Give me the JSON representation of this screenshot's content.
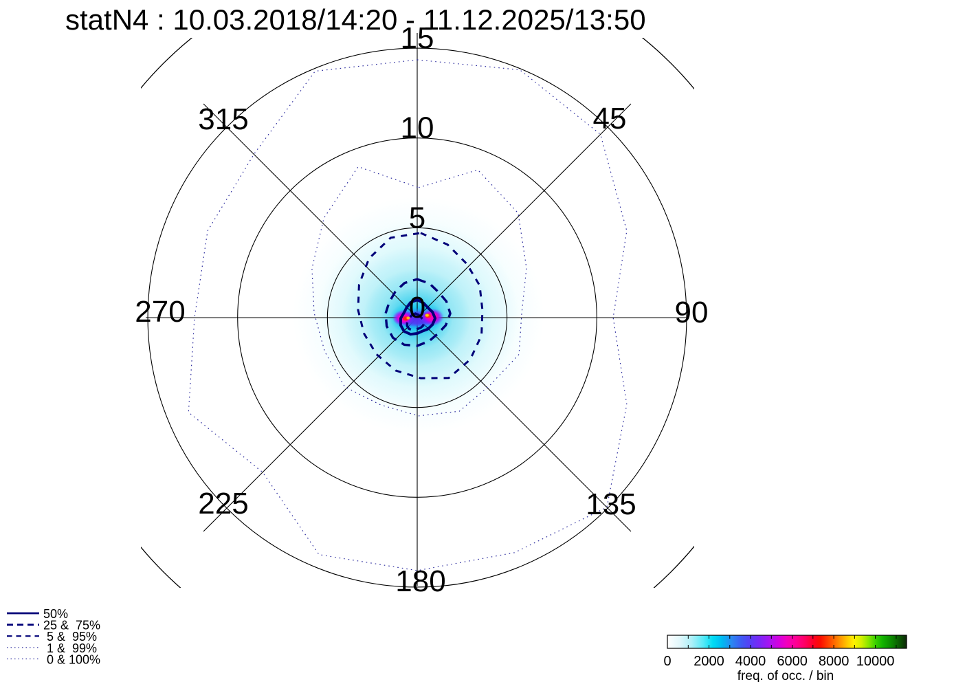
{
  "chart_data": {
    "type": "heatmap",
    "subtype": "polar_2d_histogram_with_percentile_contours",
    "title": "statN4 : 10.03.2018/14:20 - 11.12.2025/13:50",
    "station": "statN4",
    "period_start": "10.03.2018/14:20",
    "period_end": "11.12.2025/13:50",
    "angular_tick_labels_deg": [
      "45",
      "90",
      "135",
      "180",
      "225",
      "270",
      "315"
    ],
    "radial_tick_labels": [
      "0",
      "5",
      "10",
      "15"
    ],
    "radial_axis_max_units": 15,
    "grid_circle_radii_units": [
      5,
      10,
      15
    ],
    "outer_boundary_radius_units": 20,
    "legend_items": [
      {
        "label": "50%",
        "style": "solid"
      },
      {
        "label": "25 &  75%",
        "style": "dash-long"
      },
      {
        "label": " 5 &  95%",
        "style": "dash-short"
      },
      {
        "label": " 1 &  99%",
        "style": "dotted"
      },
      {
        "label": " 0 & 100%",
        "style": "dotted"
      }
    ],
    "percentile_contours": [
      {
        "percentile": "100",
        "style": "dotted",
        "center_offset_units": [
          0,
          0
        ],
        "radii_units": [
          14.35,
          14.93,
          14.43,
          12.63,
          10.91,
          12.63,
          14.93,
          14.16,
          14.08,
          14.28,
          12.17,
          13.78,
          12.4,
          12.63,
          12.86,
          14.85
        ]
      },
      {
        "percentile": "99",
        "style": "dotted",
        "center_offset_units": [
          0.08,
          -0.27
        ],
        "radii_units": [
          6.97,
          8.61,
          7.84,
          6.5,
          5.74,
          6.05,
          5.66,
          5.93,
          5.74,
          5.55,
          5.82,
          5.66,
          5.82,
          6.43,
          7.46,
          8.8
        ]
      },
      {
        "percentile": "95",
        "style": "dash-short",
        "center_offset_units": [
          0.19,
          -0.42
        ],
        "radii_units": [
          4.29,
          3.94,
          3.64,
          3.56,
          3.44,
          3.67,
          3.9,
          4.09,
          3.79,
          3.64,
          3.48,
          3.41,
          3.48,
          3.71,
          4.06,
          4.36
        ]
      },
      {
        "percentile": "75",
        "style": "dash-long",
        "center_offset_units": [
          0,
          -0.23
        ],
        "radii_units": [
          1.91,
          1.8,
          1.68,
          1.76,
          1.84,
          1.72,
          1.61,
          1.68,
          1.8,
          1.88,
          1.91,
          1.84,
          1.76,
          1.68,
          1.72,
          1.84
        ]
      },
      {
        "percentile": "25",
        "style": "dash-long",
        "center_offset_units": [
          -0.1,
          0.27
        ],
        "radii_units": [
          0.5,
          0.46,
          0.42,
          0.46,
          0.5,
          0.46,
          0.42,
          0.38,
          0.42,
          0.46,
          0.5,
          0.5,
          0.46,
          0.42,
          0.42,
          0.46
        ]
      },
      {
        "percentile": "50",
        "style": "solid",
        "center_offset_units": [
          0,
          0.04
        ],
        "radii_units": [
          1.03,
          0.92,
          0.84,
          0.92,
          1.0,
          0.92,
          0.84,
          0.77,
          0.84,
          0.96,
          1.03,
          1.0,
          0.92,
          0.8,
          0.84,
          0.96
        ]
      }
    ],
    "density_layers": [
      {
        "layer": "halo",
        "dx": 0.08,
        "dy": -0.12,
        "rx": 7.0,
        "ry": 6.6,
        "color": "#eafcfe",
        "alpha": 1
      },
      {
        "layer": "halo",
        "dx": 0.08,
        "dy": -0.12,
        "rx": 5.6,
        "ry": 5.2,
        "color": "#d2f6fb",
        "alpha": 1
      },
      {
        "layer": "halo",
        "dx": 0.02,
        "dy": -0.06,
        "rx": 4.2,
        "ry": 3.9,
        "color": "#b0eef7",
        "alpha": 1
      },
      {
        "layer": "halo",
        "dx": -0.02,
        "dy": 0.0,
        "rx": 3.0,
        "ry": 2.7,
        "color": "#86e3f3",
        "alpha": 1
      },
      {
        "layer": "halo",
        "dx": -0.02,
        "dy": 0.02,
        "rx": 2.0,
        "ry": 1.7,
        "color": "#46d3ef",
        "alpha": 1
      },
      {
        "layer": "halo",
        "dx": 0.0,
        "dy": 0.02,
        "rx": 1.55,
        "ry": 0.95,
        "color": "#0fc3ee",
        "alpha": 1
      },
      {
        "layer": "core",
        "dx": 0.0,
        "dy": 0.05,
        "rx": 1.35,
        "ry": 0.6,
        "color": "#2f7bff",
        "alpha": 0.95
      },
      {
        "layer": "core",
        "dx": 0.02,
        "dy": 0.06,
        "rx": 1.1,
        "ry": 0.45,
        "color": "#5a2af2",
        "alpha": 0.95
      },
      {
        "layer": "core",
        "dx": -0.8,
        "dy": 0.02,
        "rx": 0.58,
        "ry": 0.44,
        "color": "#b400ff",
        "alpha": 1
      },
      {
        "layer": "core",
        "dx": 0.85,
        "dy": -0.03,
        "rx": 0.62,
        "ry": 0.48,
        "color": "#ae00ff",
        "alpha": 1
      },
      {
        "layer": "core",
        "dx": -0.77,
        "dy": 0.03,
        "rx": 0.4,
        "ry": 0.3,
        "color": "#ff00c3",
        "alpha": 1
      },
      {
        "layer": "core",
        "dx": 0.82,
        "dy": -0.05,
        "rx": 0.43,
        "ry": 0.33,
        "color": "#ff00b6",
        "alpha": 1
      },
      {
        "layer": "core",
        "dx": -0.64,
        "dy": 0.05,
        "rx": 0.2,
        "ry": 0.15,
        "color": "#ff2300",
        "alpha": 1
      },
      {
        "layer": "core",
        "dx": 0.6,
        "dy": -0.1,
        "rx": 0.2,
        "ry": 0.15,
        "color": "#ff3800",
        "alpha": 1
      },
      {
        "layer": "core",
        "dx": -0.5,
        "dy": 0.02,
        "rx": 0.12,
        "ry": 0.1,
        "color": "#ffd800",
        "alpha": 1
      },
      {
        "layer": "core",
        "dx": 0.55,
        "dy": -0.13,
        "rx": 0.13,
        "ry": 0.1,
        "color": "#ffe300",
        "alpha": 1
      }
    ],
    "colorbar": {
      "title": "freq. of occ. / bin",
      "tick_labels": [
        0,
        2000,
        4000,
        6000,
        8000,
        10000
      ],
      "tick_step_minor": 1000,
      "range_max": 11500,
      "gradient": [
        [
          0.0,
          "#ffffff"
        ],
        [
          0.05,
          "#e2f8fc"
        ],
        [
          0.1,
          "#aff0f8"
        ],
        [
          0.15,
          "#57e9f7"
        ],
        [
          0.19,
          "#00dcf4"
        ],
        [
          0.23,
          "#00b9f2"
        ],
        [
          0.27,
          "#2b86f2"
        ],
        [
          0.31,
          "#3f59f4"
        ],
        [
          0.35,
          "#5a3bf6"
        ],
        [
          0.39,
          "#7f24f6"
        ],
        [
          0.43,
          "#ab12f0"
        ],
        [
          0.47,
          "#d800dc"
        ],
        [
          0.5,
          "#f300bc"
        ],
        [
          0.54,
          "#ff0092"
        ],
        [
          0.58,
          "#ff005c"
        ],
        [
          0.61,
          "#ff0026"
        ],
        [
          0.64,
          "#fb0d00"
        ],
        [
          0.68,
          "#ff4d00"
        ],
        [
          0.72,
          "#ff8f00"
        ],
        [
          0.75,
          "#ffc400"
        ],
        [
          0.78,
          "#fff200"
        ],
        [
          0.81,
          "#d5f000"
        ],
        [
          0.84,
          "#8ae600"
        ],
        [
          0.87,
          "#3bd100"
        ],
        [
          0.9,
          "#12b300"
        ],
        [
          0.94,
          "#0b8500"
        ],
        [
          0.97,
          "#0a5a02"
        ],
        [
          1.0,
          "#0d2609"
        ]
      ]
    },
    "colors": {
      "contour_navy": "#000078",
      "contour_dotted": "#2b2b9e",
      "grid_black": "#000000"
    }
  }
}
